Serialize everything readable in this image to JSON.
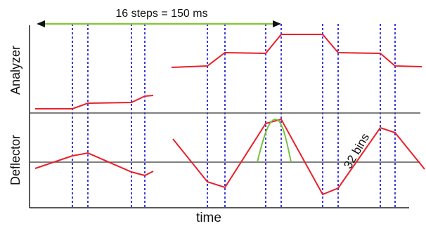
{
  "labels": {
    "span": "16 steps = 150 ms",
    "analyzer": "Analyzer",
    "deflector": "Deflector",
    "bins": "32 bins",
    "time": "time"
  },
  "colors": {
    "signal": "#e8202a",
    "marker": "#3a3ae0",
    "span_arrow": "#8cc43c",
    "peak": "#78c040",
    "axis": "#222222",
    "baseline": "#555555"
  }
}
